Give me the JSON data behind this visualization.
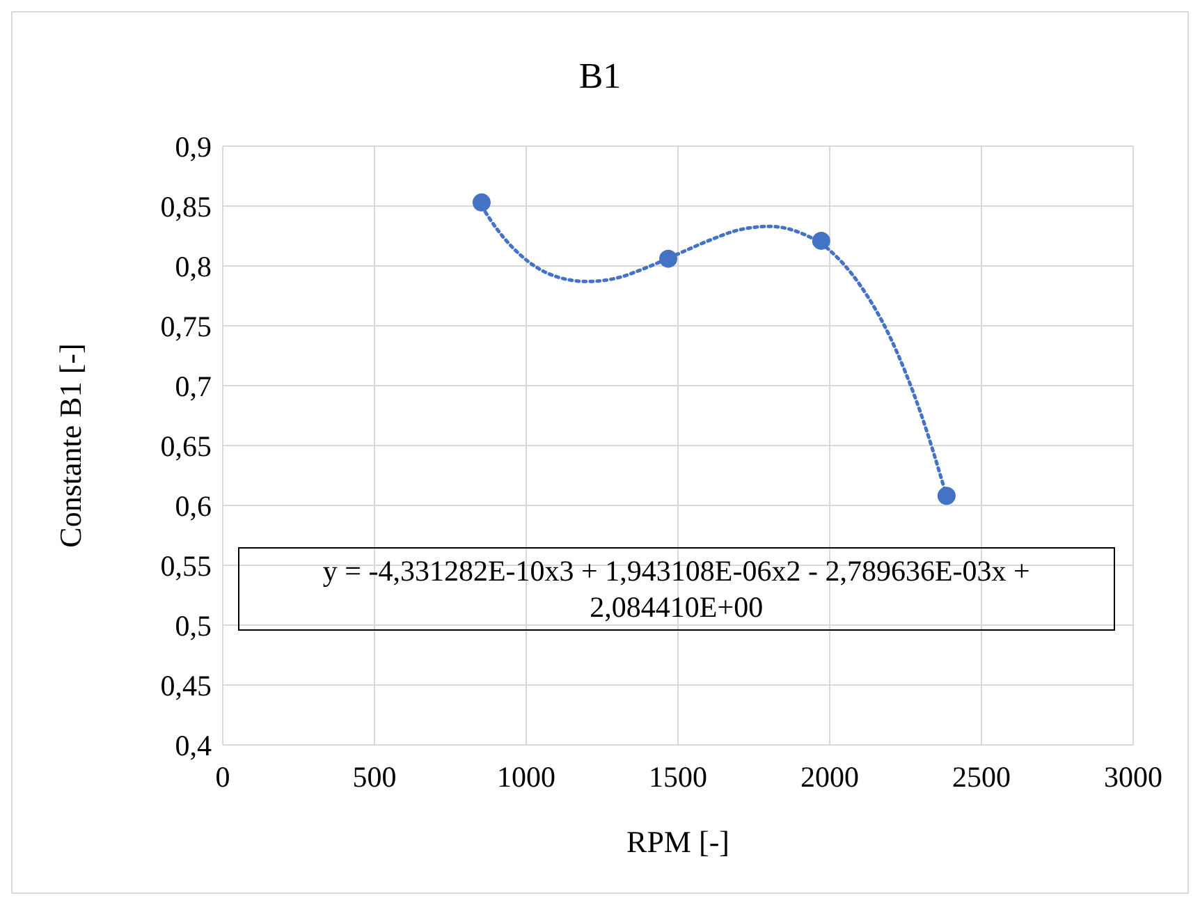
{
  "chart_data": {
    "type": "scatter",
    "title": "B1",
    "xlabel": "RPM [-]",
    "ylabel": "Constante B1 [-]",
    "xlim": [
      0,
      3000
    ],
    "xticks": [
      0,
      500,
      1000,
      1500,
      2000,
      2500,
      3000
    ],
    "ylim": [
      0.4,
      0.9
    ],
    "yticks": [
      {
        "value": 0.4,
        "label": "0,4"
      },
      {
        "value": 0.45,
        "label": "0,45"
      },
      {
        "value": 0.5,
        "label": "0,5"
      },
      {
        "value": 0.55,
        "label": "0,55"
      },
      {
        "value": 0.6,
        "label": "0,6"
      },
      {
        "value": 0.65,
        "label": "0,65"
      },
      {
        "value": 0.7,
        "label": "0,7"
      },
      {
        "value": 0.75,
        "label": "0,75"
      },
      {
        "value": 0.8,
        "label": "0,8"
      },
      {
        "value": 0.85,
        "label": "0,85"
      },
      {
        "value": 0.9,
        "label": "0,9"
      }
    ],
    "grid": true,
    "series": [
      {
        "type": "line",
        "color": "#4472c4",
        "line_style": "dotted",
        "marker": "none",
        "x": [
          853,
          900,
          1000,
          1100,
          1200,
          1300,
          1400,
          1500,
          1600,
          1700,
          1800,
          1900,
          2000,
          2100,
          2200,
          2300,
          2385
        ],
        "values": [
          0.85,
          0.832,
          0.805,
          0.791,
          0.787,
          0.79,
          0.799,
          0.81,
          0.821,
          0.83,
          0.833,
          0.828,
          0.813,
          0.784,
          0.74,
          0.677,
          0.608
        ]
      },
      {
        "type": "scatter",
        "color": "#4472c4",
        "marker": "circle",
        "x": [
          853,
          1468,
          1972,
          2385
        ],
        "values": [
          0.853,
          0.806,
          0.821,
          0.608
        ]
      }
    ],
    "annotations": [
      "y = -4,331282E-10x3 + 1,943108E-06x2 - 2,789636E-03x + 2,084410E+00"
    ]
  }
}
